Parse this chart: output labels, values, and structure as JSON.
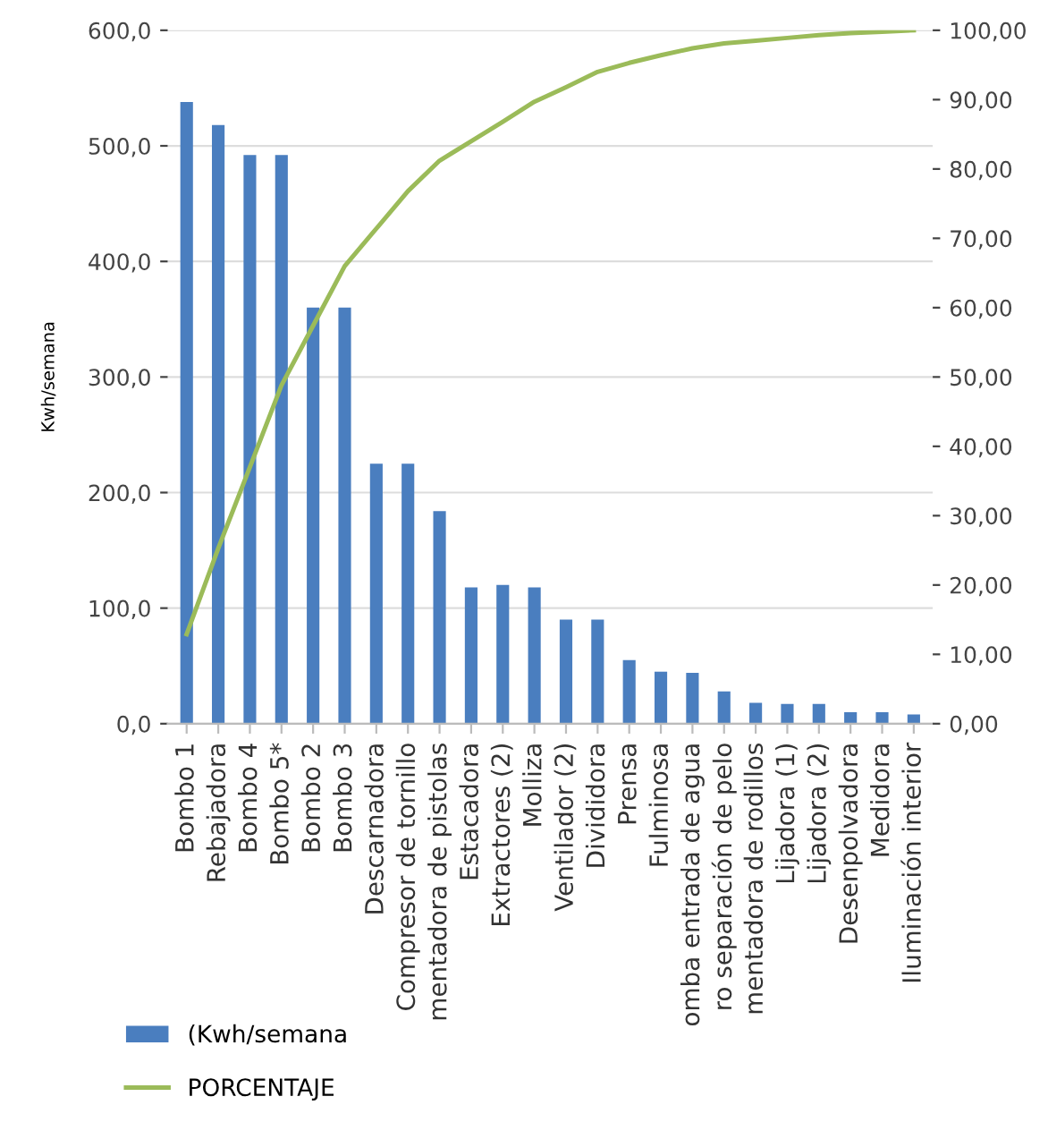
{
  "chart_data": {
    "type": "bar",
    "categories": [
      "Bombo 1",
      "Rebajadora",
      "Bombo 4",
      "Bombo 5*",
      "Bombo 2",
      "Bombo 3",
      "Descarnadora",
      "Compresor de tornillo",
      "mentadora de pistolas",
      "Estacadora",
      "Extractores (2)",
      "Molliza",
      "Ventilador (2)",
      "Divididora",
      "Prensa",
      "Fulminosa",
      "omba entrada de agua",
      "ro separación de pelo",
      "mentadora de rodillos",
      "Lijadora (1)",
      "Lijadora (2)",
      "Desenpolvadora",
      "Medidora",
      "Iluminación interior"
    ],
    "series": [
      {
        "name": "(Kwh/semana",
        "color": "#4a7ebf",
        "values": [
          538,
          518,
          492,
          492,
          360,
          360,
          225,
          225,
          184,
          118,
          120,
          118,
          90,
          90,
          55,
          45,
          44,
          28,
          18,
          17,
          17,
          10,
          10,
          8
        ]
      },
      {
        "name": "PORCENTAJE",
        "type": "line",
        "axis": "y2",
        "color": "#9bbb59",
        "values": [
          12.9,
          25.3,
          37.0,
          48.8,
          57.4,
          66.0,
          71.4,
          76.8,
          81.2,
          84.0,
          86.8,
          89.7,
          91.8,
          94.0,
          95.3,
          96.4,
          97.4,
          98.1,
          98.5,
          98.9,
          99.3,
          99.6,
          99.8,
          100
        ]
      }
    ],
    "ylabel": "Kwh/semana",
    "ylim": [
      0,
      600
    ],
    "yticks": [
      {
        "value": 0,
        "label": "0,0"
      },
      {
        "value": 100,
        "label": "100,0"
      },
      {
        "value": 200,
        "label": "200,0"
      },
      {
        "value": 300,
        "label": "300,0"
      },
      {
        "value": 400,
        "label": "400,0"
      },
      {
        "value": 500,
        "label": "500,0"
      },
      {
        "value": 600,
        "label": "600,0"
      }
    ],
    "y2lim": [
      0,
      100
    ],
    "y2ticks": [
      {
        "value": 0,
        "label": "0,00"
      },
      {
        "value": 10,
        "label": "10,00"
      },
      {
        "value": 20,
        "label": "20,00"
      },
      {
        "value": 30,
        "label": "30,00"
      },
      {
        "value": 40,
        "label": "40,00"
      },
      {
        "value": 50,
        "label": "50,00"
      },
      {
        "value": 60,
        "label": "60,00"
      },
      {
        "value": 70,
        "label": "70,00"
      },
      {
        "value": 80,
        "label": "80,00"
      },
      {
        "value": 90,
        "label": "90,00"
      },
      {
        "value": 100,
        "label": "100,00"
      }
    ],
    "grid": "y",
    "legend": "bottom left"
  }
}
